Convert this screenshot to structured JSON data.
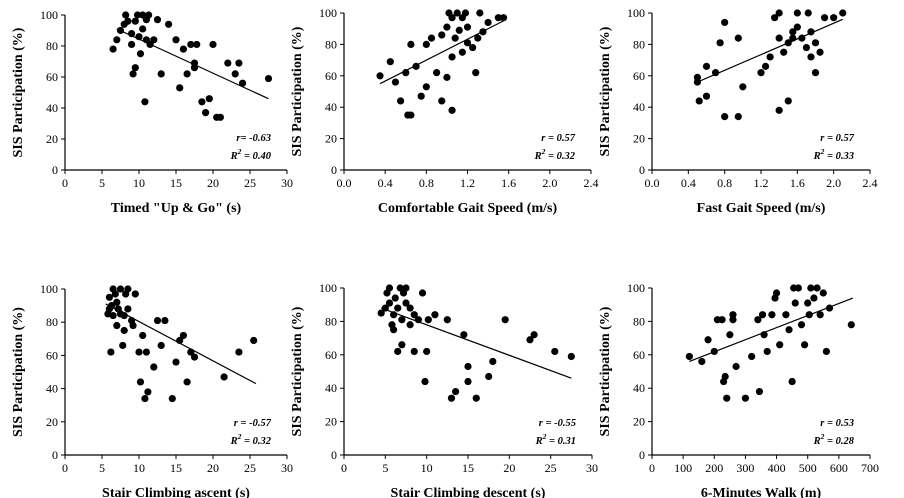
{
  "chart_data": [
    {
      "type": "scatter",
      "xlabel": "Timed \"Up & Go\" (s)",
      "ylabel": "SIS Participation (%)",
      "xticks": [
        "0",
        "5",
        "10",
        "15",
        "20",
        "25",
        "30"
      ],
      "yticks": [
        "0",
        "20",
        "40",
        "60",
        "80",
        "100"
      ],
      "xlim": [
        0,
        30
      ],
      "ylim": [
        0,
        100
      ],
      "r_text": "r= -0.63",
      "r2_prefix": "R",
      "r2_sup": "2",
      "r2_value": " = 0.40",
      "trendline": {
        "x": [
          7,
          27.5
        ],
        "y": [
          91,
          46
        ]
      },
      "points": [
        {
          "x": 6.5,
          "y": 78
        },
        {
          "x": 7,
          "y": 84
        },
        {
          "x": 7.5,
          "y": 90
        },
        {
          "x": 8,
          "y": 94
        },
        {
          "x": 8.2,
          "y": 100
        },
        {
          "x": 8.5,
          "y": 96
        },
        {
          "x": 9,
          "y": 88
        },
        {
          "x": 9,
          "y": 81
        },
        {
          "x": 9.2,
          "y": 62
        },
        {
          "x": 9.5,
          "y": 66
        },
        {
          "x": 9.5,
          "y": 96
        },
        {
          "x": 9.8,
          "y": 100
        },
        {
          "x": 10,
          "y": 86
        },
        {
          "x": 10.2,
          "y": 75
        },
        {
          "x": 10.5,
          "y": 100
        },
        {
          "x": 10.5,
          "y": 91
        },
        {
          "x": 10.8,
          "y": 44
        },
        {
          "x": 11,
          "y": 97
        },
        {
          "x": 11,
          "y": 84
        },
        {
          "x": 11.3,
          "y": 100
        },
        {
          "x": 11.5,
          "y": 81
        },
        {
          "x": 12,
          "y": 84
        },
        {
          "x": 12.5,
          "y": 97
        },
        {
          "x": 13,
          "y": 62
        },
        {
          "x": 14,
          "y": 94
        },
        {
          "x": 15,
          "y": 84
        },
        {
          "x": 15.5,
          "y": 53
        },
        {
          "x": 16,
          "y": 78
        },
        {
          "x": 16.5,
          "y": 62
        },
        {
          "x": 17,
          "y": 81
        },
        {
          "x": 17.5,
          "y": 69
        },
        {
          "x": 17.5,
          "y": 66
        },
        {
          "x": 17.8,
          "y": 81
        },
        {
          "x": 18.5,
          "y": 44
        },
        {
          "x": 19,
          "y": 37
        },
        {
          "x": 19.5,
          "y": 46
        },
        {
          "x": 20,
          "y": 81
        },
        {
          "x": 20.5,
          "y": 34
        },
        {
          "x": 21,
          "y": 34
        },
        {
          "x": 22,
          "y": 69
        },
        {
          "x": 23,
          "y": 62
        },
        {
          "x": 23.5,
          "y": 69
        },
        {
          "x": 24,
          "y": 56
        },
        {
          "x": 27.5,
          "y": 59
        }
      ]
    },
    {
      "type": "scatter",
      "xlabel": "Comfortable Gait Speed (m/s)",
      "ylabel": "SIS Participation (%)",
      "xticks": [
        "0.0",
        "0.4",
        "0.8",
        "1.2",
        "1.6",
        "2.0",
        "2.4"
      ],
      "yticks": [
        "0",
        "20",
        "40",
        "60",
        "80",
        "100"
      ],
      "xlim": [
        0,
        2.4
      ],
      "ylim": [
        0,
        100
      ],
      "r_text": "r = 0.57",
      "r2_prefix": "R",
      "r2_sup": "2",
      "r2_value": " = 0.32",
      "trendline": {
        "x": [
          0.35,
          1.55
        ],
        "y": [
          55,
          95
        ]
      },
      "points": [
        {
          "x": 0.35,
          "y": 60
        },
        {
          "x": 0.45,
          "y": 69
        },
        {
          "x": 0.5,
          "y": 56
        },
        {
          "x": 0.55,
          "y": 44
        },
        {
          "x": 0.6,
          "y": 62
        },
        {
          "x": 0.62,
          "y": 35
        },
        {
          "x": 0.65,
          "y": 35
        },
        {
          "x": 0.65,
          "y": 80
        },
        {
          "x": 0.7,
          "y": 66
        },
        {
          "x": 0.75,
          "y": 47
        },
        {
          "x": 0.8,
          "y": 53
        },
        {
          "x": 0.8,
          "y": 80
        },
        {
          "x": 0.85,
          "y": 84
        },
        {
          "x": 0.9,
          "y": 62
        },
        {
          "x": 0.95,
          "y": 86
        },
        {
          "x": 0.95,
          "y": 44
        },
        {
          "x": 1.0,
          "y": 91
        },
        {
          "x": 1.0,
          "y": 59
        },
        {
          "x": 1.02,
          "y": 100
        },
        {
          "x": 1.05,
          "y": 97
        },
        {
          "x": 1.05,
          "y": 72
        },
        {
          "x": 1.05,
          "y": 38
        },
        {
          "x": 1.08,
          "y": 84
        },
        {
          "x": 1.1,
          "y": 100
        },
        {
          "x": 1.12,
          "y": 89
        },
        {
          "x": 1.15,
          "y": 97
        },
        {
          "x": 1.15,
          "y": 75
        },
        {
          "x": 1.18,
          "y": 100
        },
        {
          "x": 1.2,
          "y": 91
        },
        {
          "x": 1.2,
          "y": 81
        },
        {
          "x": 1.25,
          "y": 78
        },
        {
          "x": 1.28,
          "y": 62
        },
        {
          "x": 1.3,
          "y": 84
        },
        {
          "x": 1.32,
          "y": 100
        },
        {
          "x": 1.35,
          "y": 88
        },
        {
          "x": 1.4,
          "y": 94
        },
        {
          "x": 1.5,
          "y": 97
        },
        {
          "x": 1.55,
          "y": 97
        }
      ]
    },
    {
      "type": "scatter",
      "xlabel": "Fast Gait Speed (m/s)",
      "ylabel": "SIS Participation (%)",
      "xticks": [
        "0.0",
        "0.4",
        "0.8",
        "1.2",
        "1.6",
        "2.0",
        "2.4"
      ],
      "yticks": [
        "0",
        "20",
        "40",
        "60",
        "80",
        "100"
      ],
      "xlim": [
        0,
        2.4
      ],
      "ylim": [
        0,
        100
      ],
      "r_text": "r = 0.57",
      "r2_prefix": "R",
      "r2_sup": "2",
      "r2_value": " = 0.33",
      "trendline": {
        "x": [
          0.5,
          2.1
        ],
        "y": [
          56,
          96
        ]
      },
      "points": [
        {
          "x": 0.5,
          "y": 59
        },
        {
          "x": 0.5,
          "y": 56
        },
        {
          "x": 0.52,
          "y": 44
        },
        {
          "x": 0.6,
          "y": 47
        },
        {
          "x": 0.6,
          "y": 66
        },
        {
          "x": 0.7,
          "y": 62
        },
        {
          "x": 0.75,
          "y": 81
        },
        {
          "x": 0.8,
          "y": 94
        },
        {
          "x": 0.8,
          "y": 34
        },
        {
          "x": 0.95,
          "y": 34
        },
        {
          "x": 0.95,
          "y": 84
        },
        {
          "x": 1.0,
          "y": 53
        },
        {
          "x": 1.2,
          "y": 62
        },
        {
          "x": 1.25,
          "y": 66
        },
        {
          "x": 1.3,
          "y": 72
        },
        {
          "x": 1.35,
          "y": 97
        },
        {
          "x": 1.4,
          "y": 100
        },
        {
          "x": 1.4,
          "y": 84
        },
        {
          "x": 1.4,
          "y": 38
        },
        {
          "x": 1.45,
          "y": 75
        },
        {
          "x": 1.5,
          "y": 81
        },
        {
          "x": 1.5,
          "y": 44
        },
        {
          "x": 1.55,
          "y": 84
        },
        {
          "x": 1.55,
          "y": 88
        },
        {
          "x": 1.6,
          "y": 100
        },
        {
          "x": 1.6,
          "y": 91
        },
        {
          "x": 1.65,
          "y": 84
        },
        {
          "x": 1.7,
          "y": 78
        },
        {
          "x": 1.72,
          "y": 100
        },
        {
          "x": 1.75,
          "y": 88
        },
        {
          "x": 1.75,
          "y": 72
        },
        {
          "x": 1.8,
          "y": 81
        },
        {
          "x": 1.8,
          "y": 62
        },
        {
          "x": 1.85,
          "y": 75
        },
        {
          "x": 1.9,
          "y": 97
        },
        {
          "x": 2.0,
          "y": 97
        },
        {
          "x": 2.1,
          "y": 100
        }
      ]
    },
    {
      "type": "scatter",
      "xlabel": "Stair Climbing ascent (s)",
      "ylabel": "SIS Participation (%)",
      "xticks": [
        "0",
        "5",
        "10",
        "15",
        "20",
        "25",
        "30"
      ],
      "yticks": [
        "0",
        "20",
        "40",
        "60",
        "80",
        "100"
      ],
      "xlim": [
        0,
        30
      ],
      "ylim": [
        0,
        100
      ],
      "r_text": "r = -0.57",
      "r2_prefix": "R",
      "r2_sup": "2",
      "r2_value": " = 0.32",
      "trendline": {
        "x": [
          5.5,
          25.8
        ],
        "y": [
          91,
          43
        ]
      },
      "points": [
        {
          "x": 5.8,
          "y": 85
        },
        {
          "x": 6,
          "y": 95
        },
        {
          "x": 6,
          "y": 88
        },
        {
          "x": 6.2,
          "y": 62
        },
        {
          "x": 6.3,
          "y": 90
        },
        {
          "x": 6.5,
          "y": 100
        },
        {
          "x": 6.5,
          "y": 84
        },
        {
          "x": 6.8,
          "y": 97
        },
        {
          "x": 7,
          "y": 92
        },
        {
          "x": 7,
          "y": 78
        },
        {
          "x": 7.2,
          "y": 88
        },
        {
          "x": 7.5,
          "y": 100
        },
        {
          "x": 7.5,
          "y": 85
        },
        {
          "x": 7.8,
          "y": 66
        },
        {
          "x": 8,
          "y": 75
        },
        {
          "x": 8,
          "y": 84
        },
        {
          "x": 8.2,
          "y": 97
        },
        {
          "x": 8.5,
          "y": 100
        },
        {
          "x": 8.5,
          "y": 88
        },
        {
          "x": 9,
          "y": 81
        },
        {
          "x": 9.2,
          "y": 78
        },
        {
          "x": 9.5,
          "y": 97
        },
        {
          "x": 10,
          "y": 62
        },
        {
          "x": 10.2,
          "y": 44
        },
        {
          "x": 10.5,
          "y": 72
        },
        {
          "x": 10.8,
          "y": 34
        },
        {
          "x": 11,
          "y": 62
        },
        {
          "x": 11.2,
          "y": 38
        },
        {
          "x": 12,
          "y": 53
        },
        {
          "x": 12.5,
          "y": 81
        },
        {
          "x": 13,
          "y": 66
        },
        {
          "x": 13.5,
          "y": 81
        },
        {
          "x": 14.5,
          "y": 34
        },
        {
          "x": 15,
          "y": 56
        },
        {
          "x": 15.5,
          "y": 69
        },
        {
          "x": 16,
          "y": 72
        },
        {
          "x": 16.5,
          "y": 44
        },
        {
          "x": 17,
          "y": 62
        },
        {
          "x": 17.5,
          "y": 59
        },
        {
          "x": 21.5,
          "y": 47
        },
        {
          "x": 23.5,
          "y": 62
        },
        {
          "x": 25.5,
          "y": 69
        }
      ]
    },
    {
      "type": "scatter",
      "xlabel": "Stair Climbing descent (s)",
      "ylabel": "SIS Participation (%)",
      "xticks": [
        "0",
        "5",
        "10",
        "15",
        "20",
        "25",
        "30"
      ],
      "yticks": [
        "0",
        "20",
        "40",
        "60",
        "80",
        "100"
      ],
      "xlim": [
        0,
        30
      ],
      "ylim": [
        0,
        100
      ],
      "r_text": "r = -0.55",
      "r2_prefix": "R",
      "r2_sup": "2",
      "r2_value": " = 0.31",
      "trendline": {
        "x": [
          4.5,
          27.5
        ],
        "y": [
          88,
          46
        ]
      },
      "points": [
        {
          "x": 4.5,
          "y": 85
        },
        {
          "x": 5,
          "y": 88
        },
        {
          "x": 5.2,
          "y": 97
        },
        {
          "x": 5.5,
          "y": 100
        },
        {
          "x": 5.5,
          "y": 91
        },
        {
          "x": 5.8,
          "y": 78
        },
        {
          "x": 6,
          "y": 75
        },
        {
          "x": 6,
          "y": 84
        },
        {
          "x": 6.2,
          "y": 94
        },
        {
          "x": 6.5,
          "y": 62
        },
        {
          "x": 6.5,
          "y": 88
        },
        {
          "x": 6.8,
          "y": 100
        },
        {
          "x": 7,
          "y": 66
        },
        {
          "x": 7,
          "y": 81
        },
        {
          "x": 7.2,
          "y": 97
        },
        {
          "x": 7.5,
          "y": 100
        },
        {
          "x": 7.5,
          "y": 91
        },
        {
          "x": 8,
          "y": 88
        },
        {
          "x": 8,
          "y": 78
        },
        {
          "x": 8.5,
          "y": 62
        },
        {
          "x": 8.5,
          "y": 84
        },
        {
          "x": 9,
          "y": 81
        },
        {
          "x": 9.5,
          "y": 97
        },
        {
          "x": 9.8,
          "y": 44
        },
        {
          "x": 10,
          "y": 62
        },
        {
          "x": 10.2,
          "y": 81
        },
        {
          "x": 11,
          "y": 84
        },
        {
          "x": 12.5,
          "y": 81
        },
        {
          "x": 13,
          "y": 34
        },
        {
          "x": 13.5,
          "y": 38
        },
        {
          "x": 14.5,
          "y": 72
        },
        {
          "x": 15,
          "y": 53
        },
        {
          "x": 15,
          "y": 44
        },
        {
          "x": 16,
          "y": 34
        },
        {
          "x": 17.5,
          "y": 47
        },
        {
          "x": 18,
          "y": 56
        },
        {
          "x": 19.5,
          "y": 81
        },
        {
          "x": 22.5,
          "y": 69
        },
        {
          "x": 23,
          "y": 72
        },
        {
          "x": 25.5,
          "y": 62
        },
        {
          "x": 27.5,
          "y": 59
        }
      ]
    },
    {
      "type": "scatter",
      "xlabel": "6-Minutes Walk (m)",
      "ylabel": "SIS Participation (%)",
      "xticks": [
        "0",
        "100",
        "200",
        "300",
        "400",
        "500",
        "600",
        "700"
      ],
      "yticks": [
        "0",
        "20",
        "40",
        "60",
        "80",
        "100"
      ],
      "xlim": [
        0,
        700
      ],
      "ylim": [
        0,
        100
      ],
      "r_text": "r = 0.53",
      "r2_prefix": "R",
      "r2_sup": "2",
      "r2_value": " = 0.28",
      "trendline": {
        "x": [
          120,
          645
        ],
        "y": [
          56,
          94
        ]
      },
      "points": [
        {
          "x": 120,
          "y": 59
        },
        {
          "x": 160,
          "y": 56
        },
        {
          "x": 180,
          "y": 69
        },
        {
          "x": 200,
          "y": 62
        },
        {
          "x": 210,
          "y": 81
        },
        {
          "x": 225,
          "y": 81
        },
        {
          "x": 230,
          "y": 44
        },
        {
          "x": 235,
          "y": 47
        },
        {
          "x": 240,
          "y": 34
        },
        {
          "x": 250,
          "y": 72
        },
        {
          "x": 260,
          "y": 84
        },
        {
          "x": 260,
          "y": 81
        },
        {
          "x": 270,
          "y": 53
        },
        {
          "x": 300,
          "y": 34
        },
        {
          "x": 320,
          "y": 59
        },
        {
          "x": 340,
          "y": 81
        },
        {
          "x": 345,
          "y": 38
        },
        {
          "x": 355,
          "y": 84
        },
        {
          "x": 360,
          "y": 72
        },
        {
          "x": 370,
          "y": 62
        },
        {
          "x": 385,
          "y": 84
        },
        {
          "x": 395,
          "y": 94
        },
        {
          "x": 400,
          "y": 97
        },
        {
          "x": 410,
          "y": 66
        },
        {
          "x": 430,
          "y": 84
        },
        {
          "x": 440,
          "y": 75
        },
        {
          "x": 450,
          "y": 44
        },
        {
          "x": 455,
          "y": 100
        },
        {
          "x": 460,
          "y": 91
        },
        {
          "x": 470,
          "y": 100
        },
        {
          "x": 480,
          "y": 78
        },
        {
          "x": 490,
          "y": 66
        },
        {
          "x": 500,
          "y": 91
        },
        {
          "x": 505,
          "y": 84
        },
        {
          "x": 510,
          "y": 100
        },
        {
          "x": 520,
          "y": 94
        },
        {
          "x": 530,
          "y": 100
        },
        {
          "x": 540,
          "y": 84
        },
        {
          "x": 550,
          "y": 97
        },
        {
          "x": 560,
          "y": 62
        },
        {
          "x": 570,
          "y": 88
        },
        {
          "x": 640,
          "y": 78
        }
      ]
    }
  ]
}
